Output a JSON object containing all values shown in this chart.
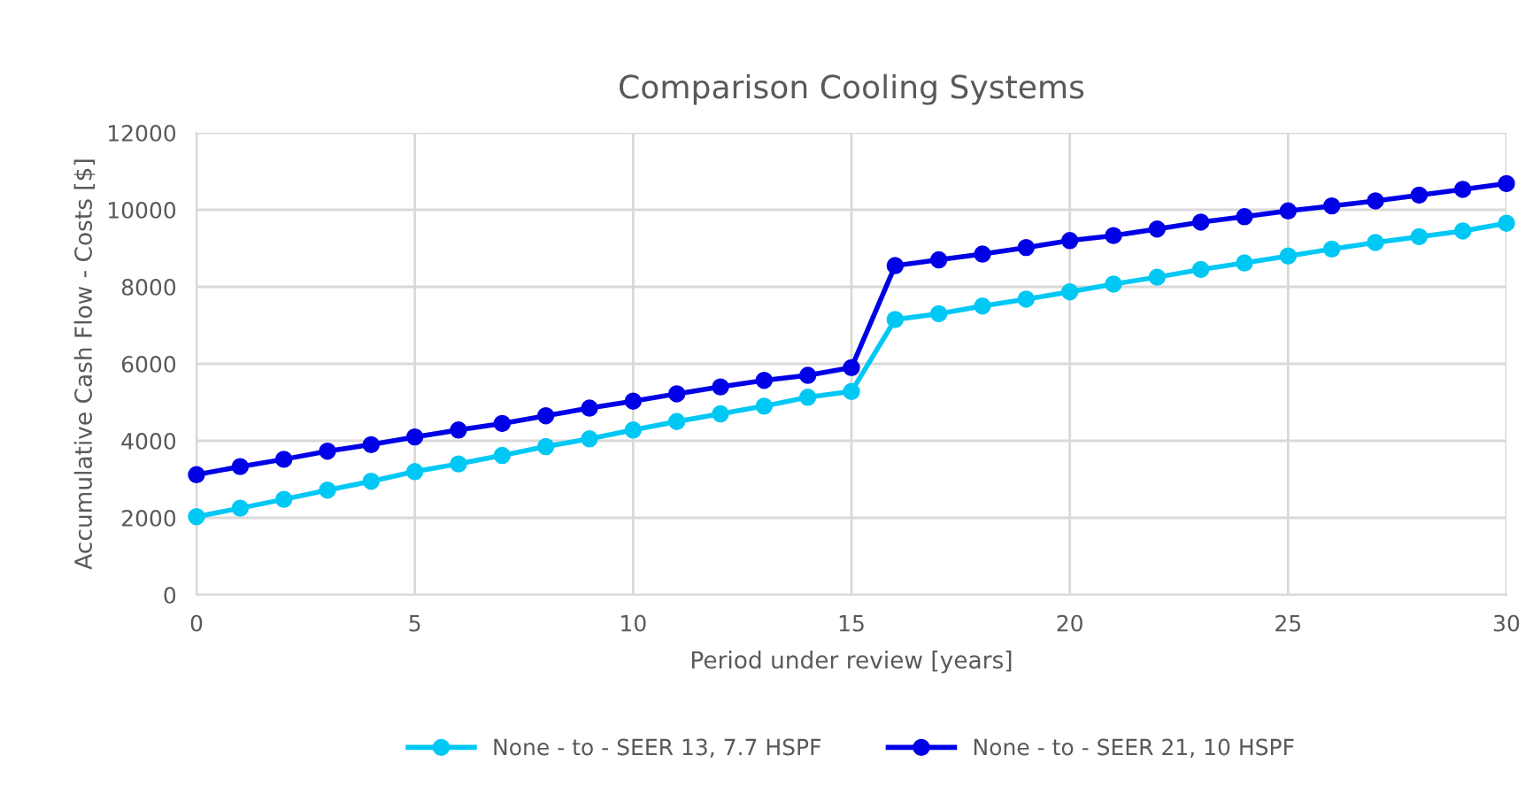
{
  "chart_data": {
    "type": "line",
    "title": "Comparison Cooling Systems",
    "xlabel": "Period under review [years]",
    "ylabel": "Accumulative Cash Flow - Costs [$]",
    "x": [
      0,
      1,
      2,
      3,
      4,
      5,
      6,
      7,
      8,
      9,
      10,
      11,
      12,
      13,
      14,
      15,
      16,
      17,
      18,
      19,
      20,
      21,
      22,
      23,
      24,
      25,
      26,
      27,
      28,
      29,
      30
    ],
    "series": [
      {
        "name": "None - to - SEER 13, 7.7 HSPF",
        "color": "#00c8f5",
        "values": [
          2030,
          2250,
          2480,
          2720,
          2950,
          3200,
          3400,
          3620,
          3850,
          4050,
          4280,
          4500,
          4700,
          4900,
          5130,
          5280,
          7150,
          7300,
          7500,
          7680,
          7870,
          8070,
          8250,
          8450,
          8620,
          8800,
          8980,
          9150,
          9300,
          9450,
          9650
        ]
      },
      {
        "name": "None - to - SEER 21, 10 HSPF",
        "color": "#0000e6",
        "values": [
          3120,
          3330,
          3520,
          3730,
          3900,
          4100,
          4280,
          4450,
          4650,
          4850,
          5030,
          5220,
          5400,
          5570,
          5700,
          5900,
          8550,
          8700,
          8850,
          9020,
          9200,
          9330,
          9500,
          9680,
          9820,
          9970,
          10100,
          10230,
          10380,
          10530,
          10680
        ]
      }
    ],
    "xlim": [
      0,
      30
    ],
    "xticks": [
      0,
      5,
      10,
      15,
      20,
      25,
      30
    ],
    "ylim": [
      0,
      12000
    ],
    "yticks": [
      0,
      2000,
      4000,
      6000,
      8000,
      10000,
      12000
    ],
    "grid": true,
    "legend": "bottom",
    "marker": "circle",
    "line_style": "solid"
  }
}
